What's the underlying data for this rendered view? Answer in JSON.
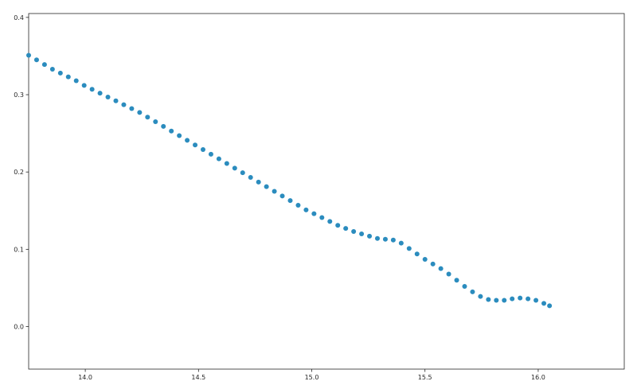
{
  "chart_data": {
    "type": "scatter",
    "title": "",
    "xlabel": "",
    "ylabel": "",
    "xlim": [
      13.75,
      16.38
    ],
    "ylim": [
      -0.055,
      0.405
    ],
    "x_ticks": [
      {
        "value": 14.0,
        "label": "14.0"
      },
      {
        "value": 14.5,
        "label": "14.5"
      },
      {
        "value": 15.0,
        "label": "15.0"
      },
      {
        "value": 15.5,
        "label": "15.5"
      },
      {
        "value": 16.0,
        "label": "16.0"
      }
    ],
    "y_ticks": [
      {
        "value": 0.0,
        "label": "0.0"
      },
      {
        "value": 0.1,
        "label": "0.1"
      },
      {
        "value": 0.2,
        "label": "0.2"
      },
      {
        "value": 0.3,
        "label": "0.3"
      },
      {
        "value": 0.4,
        "label": "0.4"
      }
    ],
    "grid": false,
    "marker_color": "#2b8cbe",
    "series": [
      {
        "x": [
          13.75,
          13.785,
          13.82,
          13.855,
          13.89,
          13.925,
          13.96,
          13.995,
          14.03,
          14.065,
          14.1,
          14.135,
          14.17,
          14.205,
          14.24,
          14.275,
          14.31,
          14.345,
          14.38,
          14.415,
          14.45,
          14.485,
          14.52,
          14.555,
          14.59,
          14.625,
          14.66,
          14.695,
          14.73,
          14.765,
          14.8,
          14.835,
          14.87,
          14.905,
          14.94,
          14.975,
          15.01,
          15.045,
          15.08,
          15.115,
          15.15,
          15.185,
          15.22,
          15.255,
          15.29,
          15.325,
          15.36,
          15.395,
          15.43,
          15.465,
          15.5,
          15.535,
          15.57,
          15.605,
          15.64,
          15.675,
          15.71,
          15.745,
          15.78,
          15.815,
          15.85,
          15.885,
          15.92,
          15.955,
          15.99,
          16.025,
          16.05
        ],
        "y": [
          0.351,
          0.345,
          0.339,
          0.333,
          0.328,
          0.323,
          0.318,
          0.312,
          0.307,
          0.302,
          0.297,
          0.292,
          0.287,
          0.282,
          0.277,
          0.271,
          0.265,
          0.259,
          0.253,
          0.247,
          0.241,
          0.235,
          0.229,
          0.223,
          0.217,
          0.211,
          0.205,
          0.199,
          0.193,
          0.187,
          0.181,
          0.175,
          0.169,
          0.163,
          0.157,
          0.151,
          0.146,
          0.141,
          0.136,
          0.131,
          0.127,
          0.123,
          0.12,
          0.117,
          0.114,
          0.113,
          0.112,
          0.108,
          0.101,
          0.094,
          0.087,
          0.081,
          0.075,
          0.068,
          0.06,
          0.052,
          0.045,
          0.039,
          0.035,
          0.034,
          0.034,
          0.036,
          0.037,
          0.036,
          0.034,
          0.03,
          0.027
        ]
      }
    ]
  }
}
